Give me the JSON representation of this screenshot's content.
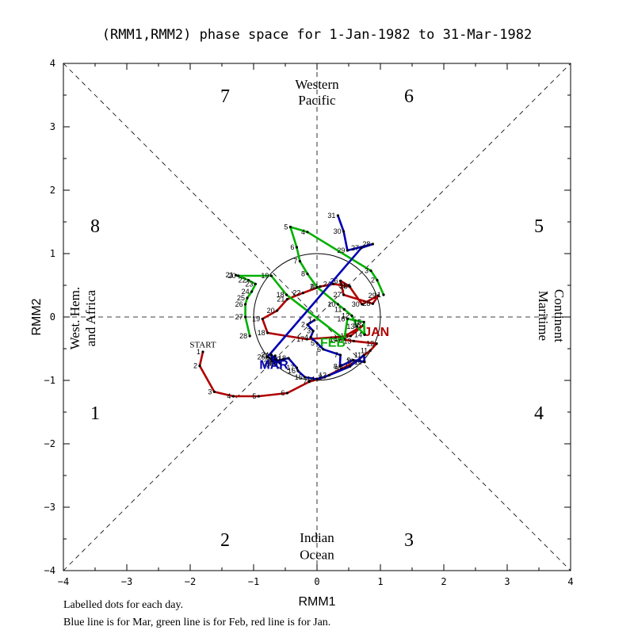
{
  "chart_data": {
    "type": "line",
    "title": "(RMM1,RMM2) phase space for  1-Jan-1982 to 31-Mar-1982",
    "xlabel": "RMM1",
    "ylabel": "RMM2",
    "xlim": [
      -4,
      4
    ],
    "ylim": [
      -4,
      4
    ],
    "xticks": [
      "−4",
      "−3",
      "−2",
      "−1",
      "0",
      "1",
      "2",
      "3",
      "4"
    ],
    "yticks": [
      "−4",
      "−3",
      "−2",
      "−1",
      "0",
      "1",
      "2",
      "3",
      "4"
    ],
    "xtick_values": [
      -4,
      -3,
      -2,
      -1,
      0,
      1,
      2,
      3,
      4
    ],
    "ytick_values": [
      -4,
      -3,
      -2,
      -1,
      0,
      1,
      2,
      3,
      4
    ],
    "grid": false,
    "unit_circle_radius": 1,
    "phase_numbers": [
      {
        "label": "1",
        "x": -3.5,
        "y": -1.5
      },
      {
        "label": "2",
        "x": -1.45,
        "y": -3.5
      },
      {
        "label": "3",
        "x": 1.45,
        "y": -3.5
      },
      {
        "label": "4",
        "x": 3.5,
        "y": -1.5
      },
      {
        "label": "5",
        "x": 3.5,
        "y": 1.45
      },
      {
        "label": "6",
        "x": 1.45,
        "y": 3.5
      },
      {
        "label": "7",
        "x": -1.45,
        "y": 3.5
      },
      {
        "label": "8",
        "x": -3.5,
        "y": 1.45
      }
    ],
    "region_labels": {
      "top": [
        "Western",
        "Pacific"
      ],
      "bottom": [
        "Indian",
        "Ocean"
      ],
      "left": [
        "West. Hem.",
        "and Africa"
      ],
      "right": [
        "Maritime",
        "Continent"
      ]
    },
    "start_label": {
      "text": "START",
      "x": -1.8,
      "y": -0.48
    },
    "series": [
      {
        "name": "Jan",
        "color": "#b00000",
        "month_label": "JAN",
        "month_label_pos": {
          "x": 0.94,
          "y": -0.3
        },
        "days": [
          "1",
          "2",
          "3",
          "4",
          "5",
          "6",
          "7",
          "8",
          "9",
          "10",
          "11",
          "12",
          "13",
          "14",
          "15",
          "16",
          "17",
          "18",
          "19",
          "20",
          "21",
          "22",
          "23",
          "24",
          "25",
          "26",
          "27",
          "28",
          "29",
          "30",
          "31"
        ],
        "x": [
          -1.8,
          -1.85,
          -1.62,
          -1.32,
          -0.92,
          -0.47,
          -0.12,
          0.12,
          0.38,
          0.62,
          0.84,
          0.94,
          0.58,
          0.36,
          0.73,
          0.53,
          -0.16,
          -0.78,
          -0.86,
          -0.63,
          -0.47,
          -0.22,
          0.05,
          0.26,
          0.52,
          0.37,
          0.42,
          0.88,
          0.97,
          0.71,
          0.5
        ],
        "y": [
          -0.55,
          -0.77,
          -1.18,
          -1.25,
          -1.25,
          -1.2,
          -1.02,
          -0.95,
          -0.82,
          -0.7,
          -0.53,
          -0.42,
          -0.38,
          -0.35,
          -0.13,
          -0.3,
          -0.35,
          -0.25,
          -0.03,
          0.1,
          0.28,
          0.38,
          0.48,
          0.52,
          0.48,
          0.57,
          0.35,
          0.21,
          0.34,
          0.2,
          0.5
        ]
      },
      {
        "name": "Feb",
        "color": "#00b000",
        "month_label": "FEB",
        "month_label_pos": {
          "x": 0.25,
          "y": -0.47
        },
        "days": [
          "1",
          "2",
          "3",
          "4",
          "5",
          "6",
          "7",
          "8",
          "9",
          "10",
          "11",
          "12",
          "13",
          "14",
          "15",
          "16",
          "17",
          "18",
          "19",
          "20",
          "21",
          "22",
          "23",
          "24",
          "25",
          "26",
          "27",
          "28"
        ],
        "x": [
          1.05,
          0.95,
          0.85,
          -0.15,
          -0.42,
          -0.32,
          -0.27,
          -0.15,
          0.0,
          0.33,
          0.43,
          0.55,
          0.63,
          0.75,
          0.74,
          0.48,
          0.43,
          -0.48,
          -0.72,
          -1.24,
          -1.28,
          -1.08,
          -0.97,
          -1.03,
          -1.1,
          -1.13,
          -1.13,
          -1.06
        ],
        "y": [
          0.35,
          0.58,
          0.73,
          1.34,
          1.42,
          1.1,
          0.88,
          0.68,
          0.47,
          0.2,
          0.12,
          0.02,
          -0.15,
          -0.28,
          -0.08,
          -0.03,
          -0.35,
          0.35,
          0.65,
          0.65,
          0.66,
          0.58,
          0.52,
          0.4,
          0.3,
          0.2,
          0.0,
          -0.3
        ]
      },
      {
        "name": "Mar",
        "color": "#0000b0",
        "month_label": "MAR",
        "month_label_pos": {
          "x": -0.68,
          "y": -0.82
        },
        "days": [
          "1",
          "2",
          "3",
          "4",
          "5",
          "6",
          "7",
          "8",
          "9",
          "10",
          "11",
          "12",
          "13",
          "14",
          "15",
          "16",
          "17",
          "18",
          "19",
          "20",
          "21",
          "22",
          "23",
          "24",
          "25",
          "26",
          "27",
          "28",
          "29",
          "30",
          "31"
        ],
        "x": [
          -0.04,
          -0.15,
          -0.06,
          -0.1,
          0.0,
          0.1,
          0.37,
          0.36,
          0.57,
          0.75,
          0.74,
          0.52,
          0.19,
          0.0,
          -0.19,
          -0.3,
          -0.32,
          -0.45,
          -0.54,
          -0.66,
          -0.65,
          -0.66,
          -0.68,
          -0.72,
          -0.58,
          -0.78,
          0.7,
          0.88,
          0.48,
          0.42,
          0.33
        ],
        "y": [
          -0.05,
          -0.12,
          -0.22,
          -0.32,
          -0.41,
          -0.51,
          -0.6,
          -0.78,
          -0.68,
          -0.71,
          -0.6,
          -0.78,
          -0.92,
          -0.98,
          -0.95,
          -0.85,
          -0.8,
          -0.65,
          -0.67,
          -0.7,
          -0.68,
          -0.61,
          -0.73,
          -0.6,
          -0.73,
          -0.63,
          1.09,
          1.15,
          1.05,
          1.35,
          1.6
        ]
      }
    ],
    "footer": [
      "Labelled dots for each day.",
      "Blue line is for Mar, green line is for Feb, red line is for Jan."
    ]
  }
}
